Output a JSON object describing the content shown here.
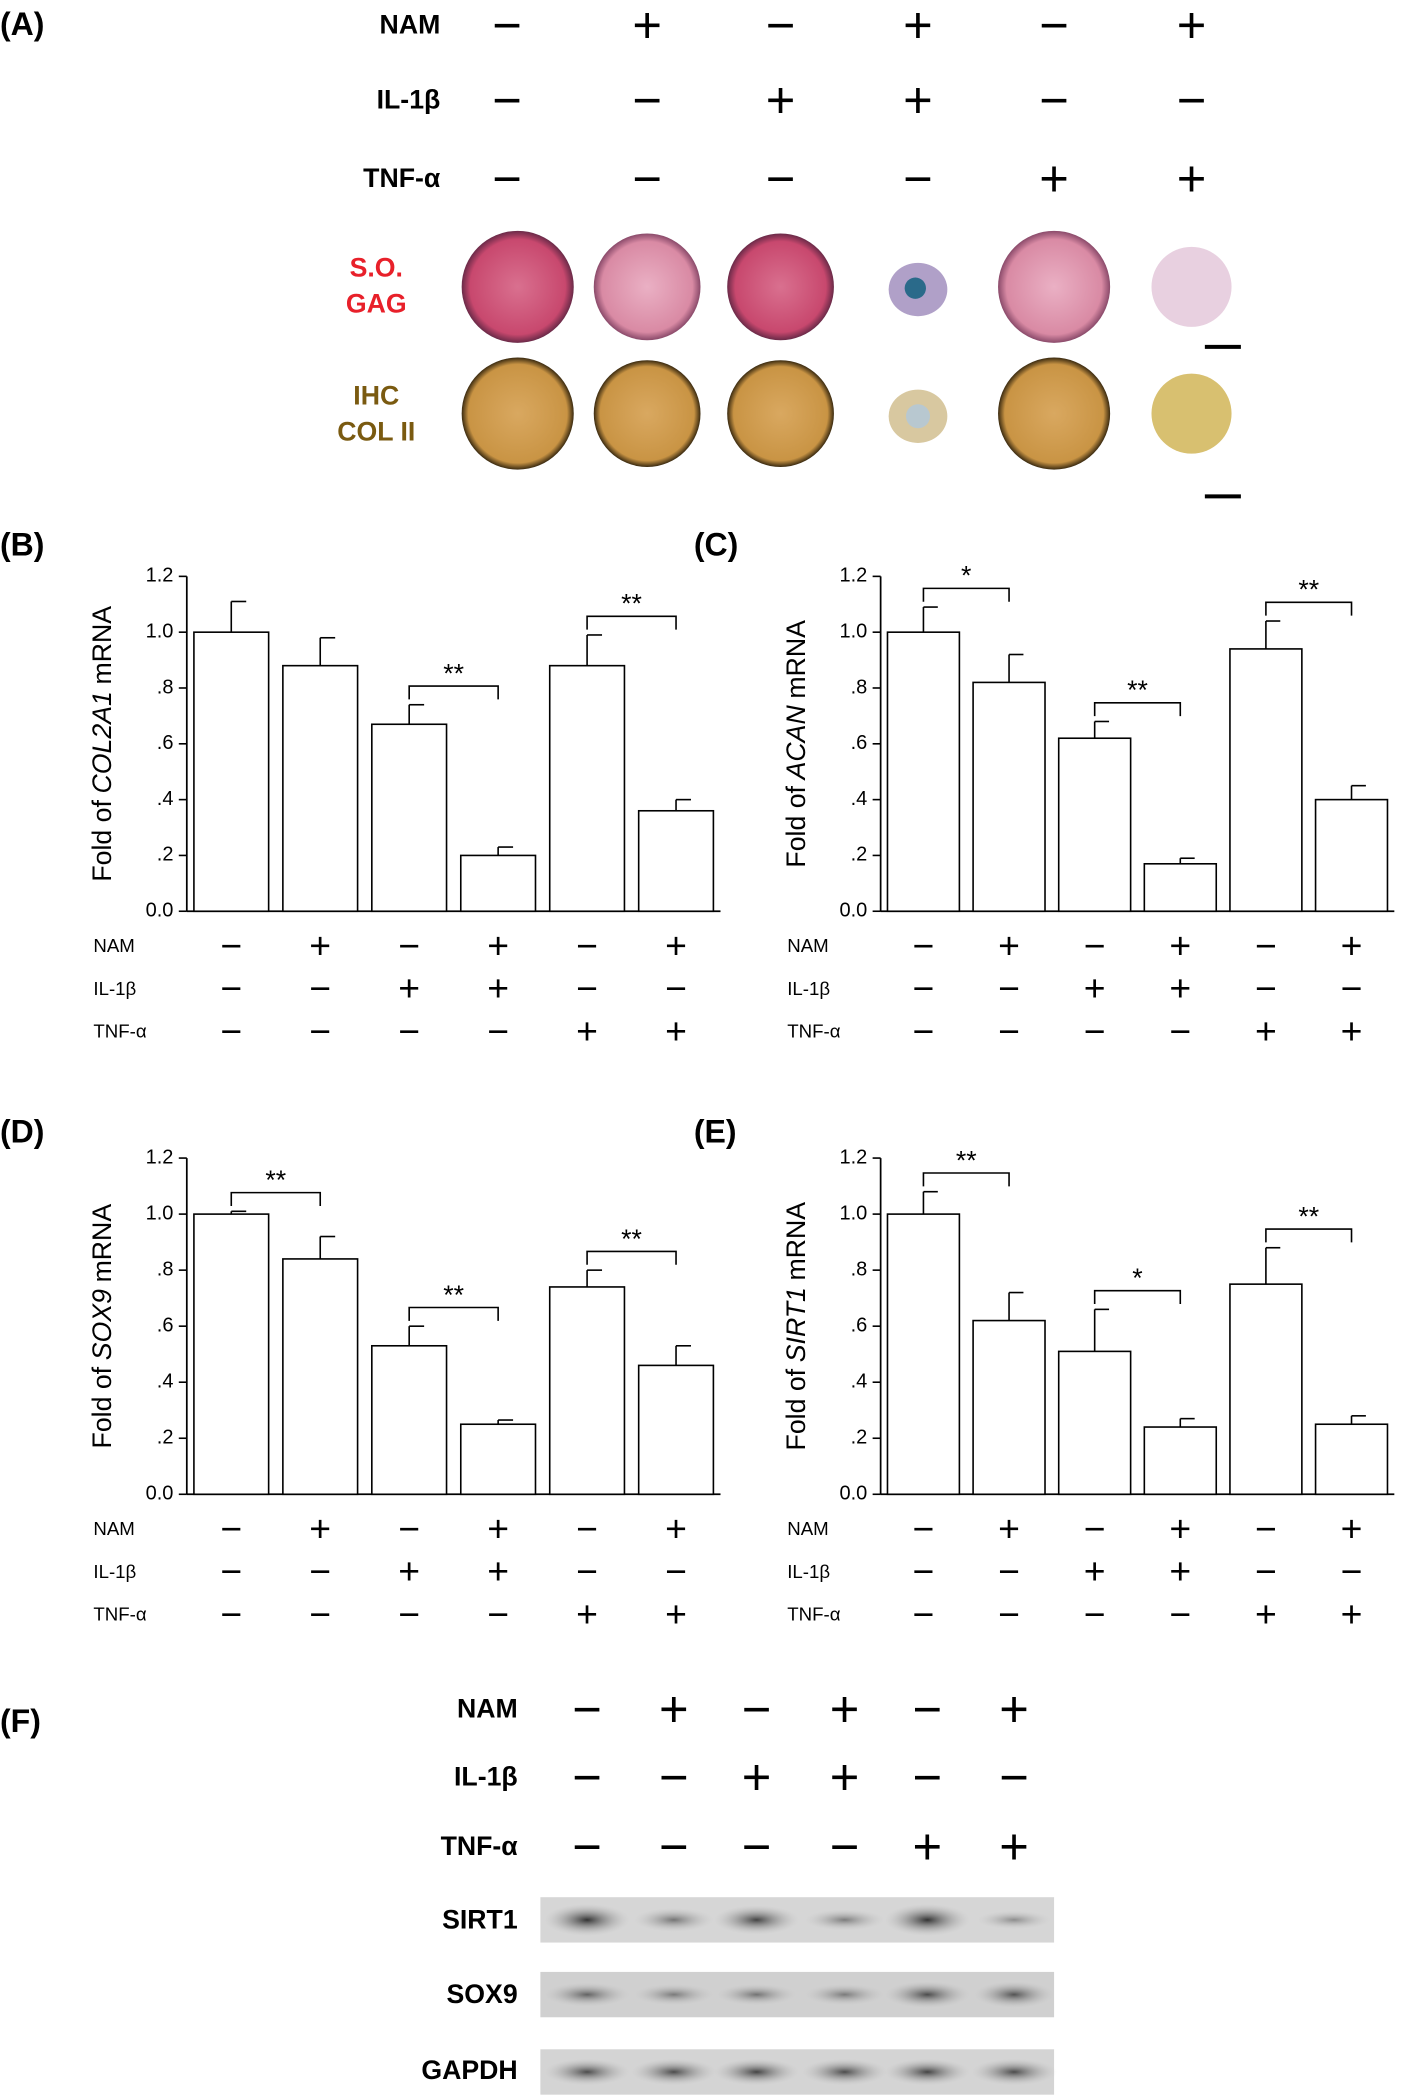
{
  "panel_a": {
    "label": "(A)",
    "rows": [
      {
        "label": "NAM",
        "signs": [
          "−",
          "+",
          "−",
          "+",
          "−",
          "+"
        ]
      },
      {
        "label": "IL-1β",
        "signs": [
          "−",
          "−",
          "+",
          "+",
          "−",
          "−"
        ]
      },
      {
        "label": "TNF-α",
        "signs": [
          "−",
          "−",
          "−",
          "−",
          "+",
          "+"
        ]
      }
    ],
    "stain_so": [
      "S.O.",
      "GAG"
    ],
    "stain_ihc": [
      "IHC",
      "COL II"
    ]
  },
  "chart_data": [
    {
      "type": "bar",
      "label": "(B)",
      "ylabel_prefix": "Fold of",
      "gene": "COL2A1",
      "ylabel_suffix": "mRNA",
      "values": [
        1.0,
        0.88,
        0.67,
        0.2,
        0.88,
        0.36
      ],
      "errors": [
        0.11,
        0.1,
        0.07,
        0.03,
        0.11,
        0.04
      ],
      "ylim": [
        0,
        1.2
      ],
      "yticks": [
        {
          "value": 0,
          "label": "0.0"
        },
        {
          "value": 0.2,
          "label": ".2"
        },
        {
          "value": 0.4,
          "label": ".4"
        },
        {
          "value": 0.6,
          "label": ".6"
        },
        {
          "value": 0.8,
          "label": ".8"
        },
        {
          "value": 1.0,
          "label": "1.0"
        },
        1.2
      ],
      "brackets": [
        {
          "bars": [
            2,
            3
          ],
          "text": "**"
        },
        {
          "bars": [
            4,
            5
          ],
          "text": "**"
        }
      ],
      "conditions": [
        {
          "label": "NAM",
          "signs": [
            "−",
            "+",
            "−",
            "+",
            "−",
            "+"
          ]
        },
        {
          "label": "IL-1β",
          "signs": [
            "−",
            "−",
            "+",
            "+",
            "−",
            "−"
          ]
        },
        {
          "label": "TNF-α",
          "signs": [
            "−",
            "−",
            "−",
            "−",
            "+",
            "+"
          ]
        }
      ]
    },
    {
      "type": "bar",
      "label": "(C)",
      "ylabel_prefix": "Fold of",
      "gene": "ACAN",
      "ylabel_suffix": "mRNA",
      "values": [
        1.0,
        0.82,
        0.62,
        0.17,
        0.94,
        0.4
      ],
      "errors": [
        0.09,
        0.1,
        0.06,
        0.02,
        0.1,
        0.05
      ],
      "ylim": [
        0,
        1.2
      ],
      "yticks": [
        {
          "value": 0,
          "label": "0.0"
        },
        {
          "value": 0.2,
          "label": ".2"
        },
        {
          "value": 0.4,
          "label": ".4"
        },
        {
          "value": 0.6,
          "label": ".6"
        },
        {
          "value": 0.8,
          "label": ".8"
        },
        {
          "value": 1.0,
          "label": "1.0"
        },
        1.2
      ],
      "brackets": [
        {
          "bars": [
            0,
            1
          ],
          "text": "*"
        },
        {
          "bars": [
            2,
            3
          ],
          "text": "**"
        },
        {
          "bars": [
            4,
            5
          ],
          "text": "**"
        }
      ],
      "conditions": [
        {
          "label": "NAM",
          "signs": [
            "−",
            "+",
            "−",
            "+",
            "−",
            "+"
          ]
        },
        {
          "label": "IL-1β",
          "signs": [
            "−",
            "−",
            "+",
            "+",
            "−",
            "−"
          ]
        },
        {
          "label": "TNF-α",
          "signs": [
            "−",
            "−",
            "−",
            "−",
            "+",
            "+"
          ]
        }
      ]
    },
    {
      "type": "bar",
      "label": "(D)",
      "ylabel_prefix": "Fold of",
      "gene": "SOX9",
      "ylabel_suffix": "mRNA",
      "values": [
        1.0,
        0.84,
        0.53,
        0.25,
        0.74,
        0.46
      ],
      "errors": [
        0.01,
        0.08,
        0.07,
        0.015,
        0.06,
        0.07
      ],
      "ylim": [
        0,
        1.2
      ],
      "yticks": [
        {
          "value": 0,
          "label": "0.0"
        },
        {
          "value": 0.2,
          "label": ".2"
        },
        {
          "value": 0.4,
          "label": ".4"
        },
        {
          "value": 0.6,
          "label": ".6"
        },
        {
          "value": 0.8,
          "label": ".8"
        },
        {
          "value": 1.0,
          "label": "1.0"
        },
        1.2
      ],
      "brackets": [
        {
          "bars": [
            0,
            1
          ],
          "text": "**"
        },
        {
          "bars": [
            2,
            3
          ],
          "text": "**"
        },
        {
          "bars": [
            4,
            5
          ],
          "text": "**"
        }
      ],
      "conditions": [
        {
          "label": "NAM",
          "signs": [
            "−",
            "+",
            "−",
            "+",
            "−",
            "+"
          ]
        },
        {
          "label": "IL-1β",
          "signs": [
            "−",
            "−",
            "+",
            "+",
            "−",
            "−"
          ]
        },
        {
          "label": "TNF-α",
          "signs": [
            "−",
            "−",
            "−",
            "−",
            "+",
            "+"
          ]
        }
      ]
    },
    {
      "type": "bar",
      "label": "(E)",
      "ylabel_prefix": "Fold of",
      "gene": "SIRT1",
      "ylabel_suffix": "mRNA",
      "values": [
        1.0,
        0.62,
        0.51,
        0.24,
        0.75,
        0.25
      ],
      "errors": [
        0.08,
        0.1,
        0.15,
        0.03,
        0.13,
        0.03
      ],
      "ylim": [
        0,
        1.2
      ],
      "yticks": [
        {
          "value": 0,
          "label": "0.0"
        },
        {
          "value": 0.2,
          "label": ".2"
        },
        {
          "value": 0.4,
          "label": ".4"
        },
        {
          "value": 0.6,
          "label": ".6"
        },
        {
          "value": 0.8,
          "label": ".8"
        },
        {
          "value": 1.0,
          "label": "1.0"
        },
        1.2
      ],
      "brackets": [
        {
          "bars": [
            0,
            1
          ],
          "text": "**"
        },
        {
          "bars": [
            2,
            3
          ],
          "text": "*"
        },
        {
          "bars": [
            4,
            5
          ],
          "text": "**"
        }
      ],
      "conditions": [
        {
          "label": "NAM",
          "signs": [
            "−",
            "+",
            "−",
            "+",
            "−",
            "+"
          ]
        },
        {
          "label": "IL-1β",
          "signs": [
            "−",
            "−",
            "+",
            "+",
            "−",
            "−"
          ]
        },
        {
          "label": "TNF-α",
          "signs": [
            "−",
            "−",
            "−",
            "−",
            "+",
            "+"
          ]
        }
      ]
    }
  ],
  "panel_f": {
    "label": "(F)",
    "rows": [
      {
        "label": "NAM",
        "signs": [
          "−",
          "+",
          "−",
          "+",
          "−",
          "+"
        ]
      },
      {
        "label": "IL-1β",
        "signs": [
          "−",
          "−",
          "+",
          "+",
          "−",
          "−"
        ]
      },
      {
        "label": "TNF-α",
        "signs": [
          "−",
          "−",
          "−",
          "−",
          "+",
          "+"
        ]
      }
    ],
    "blots": [
      "SIRT1",
      "SOX9",
      "GAPDH"
    ]
  }
}
